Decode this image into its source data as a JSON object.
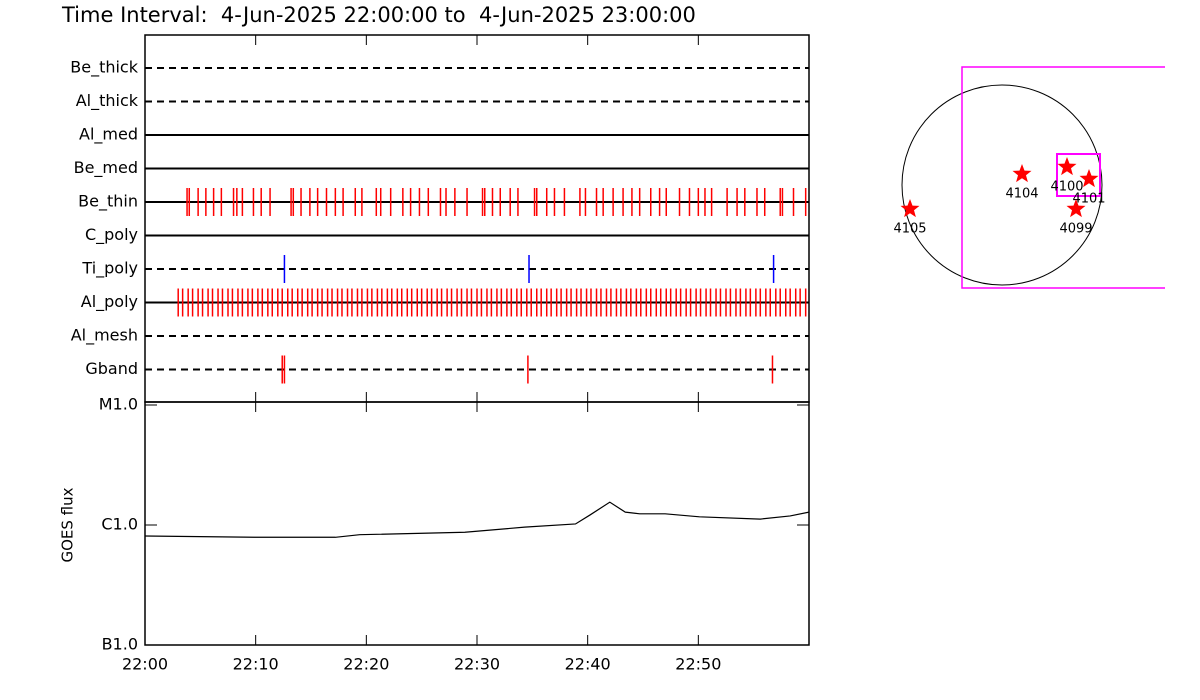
{
  "title": "Time Interval:  4-Jun-2025 22:00:00 to  4-Jun-2025 23:00:00",
  "chart_data": [
    {
      "type": "timeline",
      "xlim": [
        0,
        60
      ],
      "series": [
        {
          "name": "Be_thick",
          "line_style": "dashed",
          "color": "#ff0000",
          "values": []
        },
        {
          "name": "Al_thick",
          "line_style": "dashed",
          "color": "#ff0000",
          "values": []
        },
        {
          "name": "Al_med",
          "line_style": "solid",
          "color": "#ff0000",
          "values": []
        },
        {
          "name": "Be_med",
          "line_style": "solid",
          "color": "#ff0000",
          "values": []
        },
        {
          "name": "Be_thin",
          "line_style": "solid",
          "color": "#ff0000",
          "values": [
            3.8,
            4.0,
            4.8,
            5.5,
            6.2,
            6.9,
            8.0,
            8.3,
            8.8,
            9.8,
            10.5,
            11.3,
            13.2,
            13.4,
            14.1,
            14.9,
            15.6,
            16.4,
            17.2,
            17.9,
            19.0,
            19.6,
            20.9,
            21.3,
            22.2,
            23.3,
            24.0,
            24.8,
            25.6,
            26.7,
            27.2,
            28.0,
            29.1,
            30.5,
            30.7,
            31.4,
            32.1,
            33.0,
            33.7,
            35.2,
            35.4,
            36.3,
            37.0,
            37.9,
            39.3,
            39.8,
            40.8,
            41.4,
            42.3,
            43.2,
            44.0,
            44.7,
            45.7,
            46.5,
            47.1,
            48.3,
            49.2,
            50.0,
            50.6,
            51.2,
            52.6,
            53.5,
            54.2,
            55.3,
            56.0,
            57.4,
            57.6,
            58.6,
            59.7
          ]
        },
        {
          "name": "C_poly",
          "line_style": "solid",
          "color": "#ff0000",
          "values": []
        },
        {
          "name": "Ti_poly",
          "line_style": "dashed",
          "color": "#0000ff",
          "values": [
            12.6,
            34.7,
            56.8
          ]
        },
        {
          "name": "Al_poly",
          "line_style": "solid",
          "color": "#ff0000",
          "values": [
            3.0,
            3.4,
            3.9,
            4.3,
            4.8,
            5.2,
            5.7,
            6.1,
            6.6,
            7.0,
            7.5,
            7.9,
            8.4,
            8.8,
            9.3,
            9.7,
            10.2,
            10.6,
            11.1,
            11.5,
            12.0,
            12.4,
            12.9,
            13.3,
            13.8,
            14.2,
            14.7,
            15.1,
            15.6,
            16.0,
            16.5,
            16.9,
            17.4,
            17.8,
            18.3,
            18.7,
            19.2,
            19.6,
            20.1,
            20.5,
            21.0,
            21.4,
            21.9,
            22.3,
            22.8,
            23.2,
            23.7,
            24.1,
            24.6,
            25.0,
            25.5,
            25.9,
            26.4,
            26.8,
            27.3,
            27.7,
            28.2,
            28.6,
            29.1,
            29.5,
            30.0,
            30.4,
            30.9,
            31.3,
            31.8,
            32.2,
            32.7,
            33.1,
            33.6,
            34.0,
            34.5,
            34.9,
            35.4,
            35.8,
            36.3,
            36.7,
            37.2,
            37.6,
            38.1,
            38.5,
            39.0,
            39.4,
            39.9,
            40.3,
            40.8,
            41.2,
            41.7,
            42.1,
            42.6,
            43.0,
            43.5,
            43.9,
            44.4,
            44.8,
            45.3,
            45.7,
            46.2,
            46.6,
            47.1,
            47.5,
            48.0,
            48.4,
            48.9,
            49.3,
            49.8,
            50.2,
            50.7,
            51.1,
            51.6,
            52.0,
            52.5,
            52.9,
            53.4,
            53.8,
            54.3,
            54.7,
            55.2,
            55.6,
            56.1,
            56.5,
            57.0,
            57.4,
            57.9,
            58.3,
            58.8,
            59.2,
            59.7
          ]
        },
        {
          "name": "Al_mesh",
          "line_style": "dashed",
          "color": "#ff0000",
          "values": []
        },
        {
          "name": "Gband",
          "line_style": "dashed",
          "color": "#ff0000",
          "values": [
            12.4,
            12.6,
            34.6,
            56.7
          ]
        }
      ]
    },
    {
      "type": "line",
      "ylabel": "GOES flux",
      "log_y": true,
      "xlim": [
        0,
        60
      ],
      "xticks": [
        {
          "value": 0,
          "label": "22:00"
        },
        {
          "value": 10,
          "label": "22:10"
        },
        {
          "value": 20,
          "label": "22:20"
        },
        {
          "value": 30,
          "label": "22:30"
        },
        {
          "value": 40,
          "label": "22:40"
        },
        {
          "value": 50,
          "label": "22:50"
        }
      ],
      "ylim": [
        1e-07,
        1e-05
      ],
      "yticks": [
        {
          "value": 1e-07,
          "label": "B1.0"
        },
        {
          "value": 1e-06,
          "label": "C1.0"
        },
        {
          "value": 1e-05,
          "label": "M1.0"
        }
      ],
      "x": [
        0,
        9.9,
        17.2,
        19.4,
        28.9,
        34.3,
        38.9,
        40.2,
        42.0,
        43.4,
        44.7,
        47.0,
        50.1,
        55.6,
        58.3,
        60
      ],
      "series": [
        {
          "color": "#000000",
          "values": [
            8.1e-07,
            7.9e-07,
            7.9e-07,
            8.3e-07,
            8.7e-07,
            9.6e-07,
            1.02e-06,
            1.21e-06,
            1.55e-06,
            1.28e-06,
            1.24e-06,
            1.24e-06,
            1.17e-06,
            1.12e-06,
            1.19e-06,
            1.28e-06
          ]
        }
      ]
    }
  ],
  "disk_map": {
    "region_labels": [
      "4105",
      "4104",
      "4100",
      "4101",
      "4099"
    ]
  }
}
